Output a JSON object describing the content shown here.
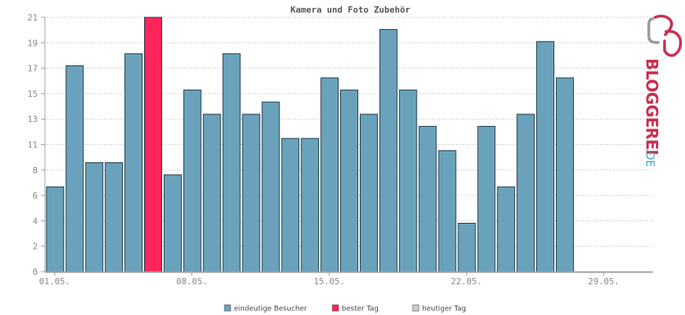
{
  "chart_data": {
    "type": "bar",
    "title": "Kamera und Foto Zubehör",
    "ylim": [
      0,
      21
    ],
    "y_ticks": [
      "0",
      "2",
      "4",
      "6",
      "8",
      "11",
      "13",
      "15",
      "17",
      "19",
      "21"
    ],
    "x_tick_labels": [
      {
        "index": 0,
        "label": "01.05."
      },
      {
        "index": 7,
        "label": "08.05."
      },
      {
        "index": 14,
        "label": "15.05."
      },
      {
        "index": 21,
        "label": "22.05."
      },
      {
        "index": 28,
        "label": "29.05."
      }
    ],
    "slot_count": 31,
    "values": [
      7,
      17,
      9,
      9,
      18,
      21,
      8,
      15,
      13,
      18,
      13,
      14,
      11,
      11,
      16,
      15,
      13,
      20,
      15,
      12,
      10,
      4,
      12,
      7,
      13,
      19,
      16
    ],
    "best_day_index": 5,
    "grid": true,
    "legend": [
      {
        "label": "eindeutige Besucher",
        "color": "#6aa2bb"
      },
      {
        "label": "bester Tag",
        "color": "#ff2459"
      },
      {
        "label": "heutiger Tag",
        "color": "#cccccc"
      }
    ],
    "legend_position": "bottom"
  },
  "colors": {
    "bar": "#6aa2bb",
    "best": "#ff2459",
    "bar_stroke": "#1f3d4a",
    "grid": "#bbbbbb",
    "axis": "#a0a0a0"
  },
  "logo": {
    "text": "BLOGGEREI",
    "suffix": ".DE"
  }
}
